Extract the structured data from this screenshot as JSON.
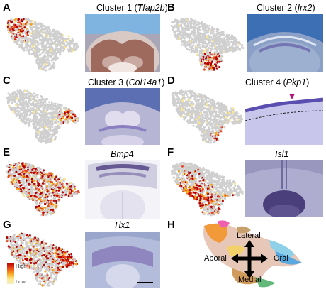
{
  "panels": {
    "A": {
      "letter": "A",
      "title_prefix": "Cluster 1 (",
      "title_bold": "T",
      "title_gene": "fap2b",
      "title_suffix": ")"
    },
    "B": {
      "letter": "B",
      "title_prefix": "Cluster 2 (",
      "title_gene": "Irx2",
      "title_suffix": ")"
    },
    "C": {
      "letter": "C",
      "title_prefix": "Cluster 3 (",
      "title_gene": "Col14a1",
      "title_suffix": ")"
    },
    "D": {
      "letter": "D",
      "title_prefix": "Cluster 4 (",
      "title_gene": "Pkp1",
      "title_suffix": ")"
    },
    "E": {
      "letter": "E",
      "title_gene": "Bmp",
      "title_suffix": "4"
    },
    "F": {
      "letter": "F",
      "title_gene": "Isl1"
    },
    "G": {
      "letter": "G",
      "title_gene": "Tlx1"
    },
    "H": {
      "letter": "H"
    }
  },
  "legend": {
    "high": "High",
    "low": "Low"
  },
  "axes_labels": {
    "lateral": "Lateral",
    "aboral": "Aboral",
    "oral": "Oral",
    "medial": "Medial"
  },
  "colors": {
    "grey_cell": "#cfcfcf",
    "expr_high": "#b30000",
    "expr_mid": "#f7a21b",
    "expr_low": "#fde68a"
  }
}
